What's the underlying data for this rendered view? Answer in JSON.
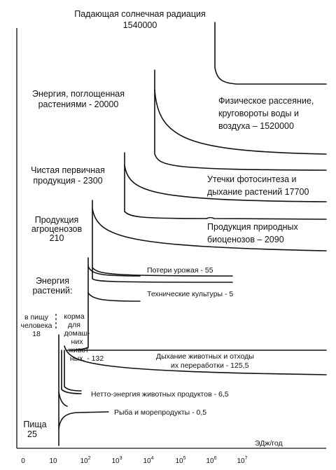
{
  "title": {
    "line1": "Падающая солнечная радиация",
    "line2": "1540000"
  },
  "left_labels": {
    "absorbed": [
      "Энергия, поглощенная",
      "растениями - 20000"
    ],
    "net_primary": [
      "Чистая первичная",
      "продукция - 2300"
    ],
    "agro": [
      "Продукция",
      "агроценозов",
      "210"
    ],
    "plant_energy": [
      "Энергия",
      "растений:"
    ],
    "food_people": [
      "в пищу",
      "человека",
      "18"
    ],
    "feed_animals": [
      "корма",
      "для",
      "домаш-",
      "них",
      "живот-",
      "ных. - 132"
    ],
    "food": [
      "Пища",
      "25"
    ]
  },
  "right_labels": {
    "physical": [
      "Физическое рассеяние,",
      "круговороты воды и",
      "воздуха – 1520000"
    ],
    "leaks": [
      "Утечки фотосинтеза и",
      "дыхание растений 17700"
    ],
    "natural": [
      "Продукция природных",
      "биоценозов – 2090"
    ],
    "harvest_loss": "Потери урожая - 55",
    "technical": "Технические культуры - 5",
    "animal_resp": [
      "Дыхание животных и отходы",
      "их переработки - 125,5"
    ],
    "net_animal": "Нетто-энергия животных продуктов - 6,5",
    "fish": "Рыба и морепродукты - 0,5"
  },
  "axis": {
    "unit": "ЭДж/год",
    "ticks": [
      {
        "base": "0",
        "exp": ""
      },
      {
        "base": "10",
        "exp": ""
      },
      {
        "base": "10",
        "exp": "2"
      },
      {
        "base": "10",
        "exp": "3"
      },
      {
        "base": "10",
        "exp": "4"
      },
      {
        "base": "10",
        "exp": "5"
      },
      {
        "base": "10",
        "exp": "6"
      },
      {
        "base": "10",
        "exp": "7"
      }
    ]
  }
}
